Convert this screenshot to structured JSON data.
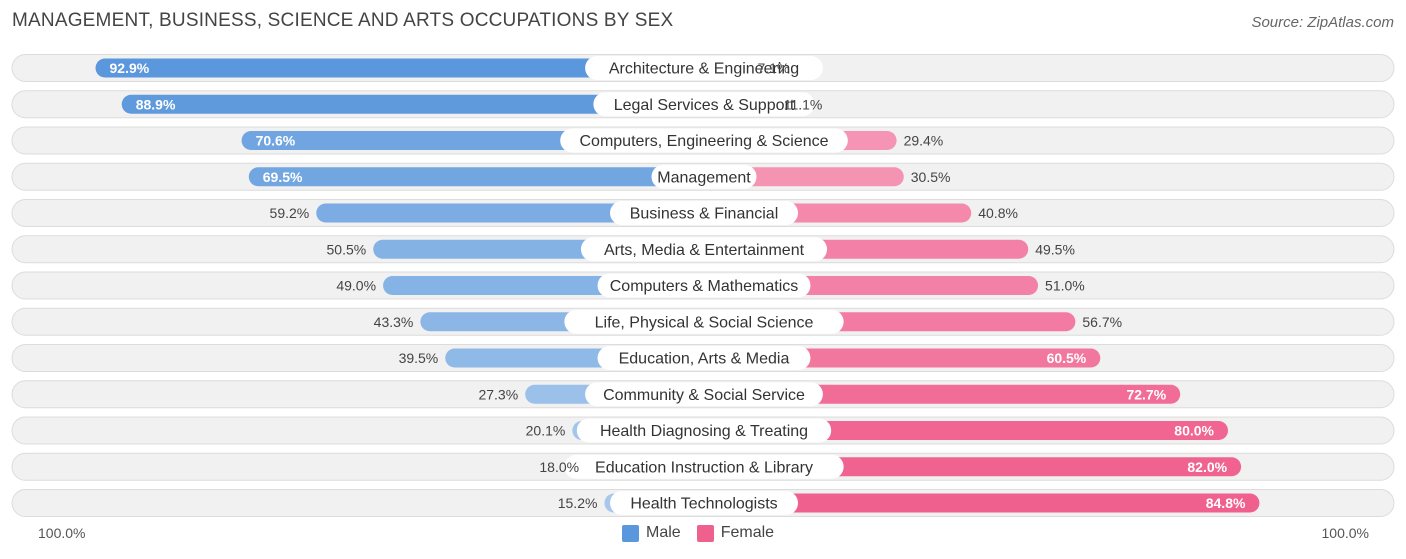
{
  "title": "MANAGEMENT, BUSINESS, SCIENCE AND ARTS OCCUPATIONS BY SEX",
  "source": "Source: ZipAtlas.com",
  "colors": {
    "male_dark": "#5b97dc",
    "male_light": "#a7c8ec",
    "female_dark": "#f0608f",
    "female_light": "#f7a9c3",
    "row_bg": "#f1f1f1",
    "row_border": "#dcdcdc"
  },
  "axis": {
    "left_label": "100.0%",
    "right_label": "100.0%"
  },
  "legend": {
    "male": "Male",
    "female": "Female"
  },
  "chart_data": {
    "type": "bar",
    "orientation": "horizontal-diverging",
    "title": "MANAGEMENT, BUSINESS, SCIENCE AND ARTS OCCUPATIONS BY SEX",
    "xlim": [
      -100,
      100
    ],
    "categories": [
      "Architecture & Engineering",
      "Legal Services & Support",
      "Computers, Engineering & Science",
      "Management",
      "Business & Financial",
      "Arts, Media & Entertainment",
      "Computers & Mathematics",
      "Life, Physical & Social Science",
      "Education, Arts & Media",
      "Community & Social Service",
      "Health Diagnosing & Treating",
      "Education Instruction & Library",
      "Health Technologists"
    ],
    "series": [
      {
        "name": "Male",
        "values": [
          92.9,
          88.9,
          70.6,
          69.5,
          59.2,
          50.5,
          49.0,
          43.3,
          39.5,
          27.3,
          20.1,
          18.0,
          15.2
        ],
        "labels": [
          "92.9%",
          "88.9%",
          "70.6%",
          "69.5%",
          "59.2%",
          "50.5%",
          "49.0%",
          "43.3%",
          "39.5%",
          "27.3%",
          "20.1%",
          "18.0%",
          "15.2%"
        ]
      },
      {
        "name": "Female",
        "values": [
          7.1,
          11.1,
          29.4,
          30.5,
          40.8,
          49.5,
          51.0,
          56.7,
          60.5,
          72.7,
          80.0,
          82.0,
          84.8
        ],
        "labels": [
          "7.1%",
          "11.1%",
          "29.4%",
          "30.5%",
          "40.8%",
          "49.5%",
          "51.0%",
          "56.7%",
          "60.5%",
          "72.7%",
          "80.0%",
          "82.0%",
          "84.8%"
        ]
      }
    ]
  }
}
